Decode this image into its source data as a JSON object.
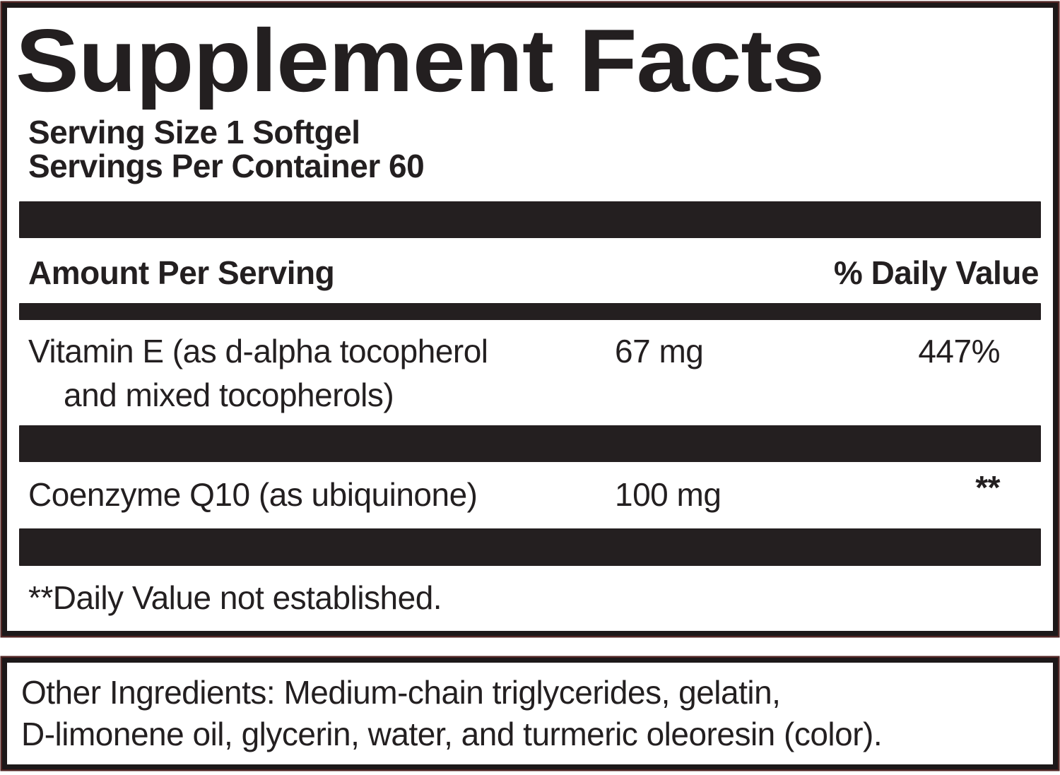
{
  "panel": {
    "title": "Supplement Facts",
    "serving_size": "Serving Size 1 Softgel",
    "servings_per_container": "Servings Per Container 60",
    "header": {
      "amount": "Amount Per Serving",
      "daily_value": "% Daily Value"
    },
    "rows": [
      {
        "name_line1": "Vitamin E (as d-alpha tocopherol",
        "name_line2": "and mixed tocopherols)",
        "amount": "67 mg",
        "daily_value": "447%"
      },
      {
        "name_line1": "Coenzyme Q10 (as ubiquinone)",
        "amount": "100 mg",
        "daily_value": "**"
      }
    ],
    "footnote": "**Daily Value not established."
  },
  "other_ingredients": {
    "line1": "Other Ingredients: Medium-chain triglycerides, gelatin,",
    "line2": "D-limonene oil, glycerin, water, and turmeric oleoresin (color)."
  },
  "colors": {
    "text": "#231f20",
    "bar": "#241f20",
    "border": "#1c1819",
    "halo": "#4f2423",
    "bg": "#ffffff"
  }
}
